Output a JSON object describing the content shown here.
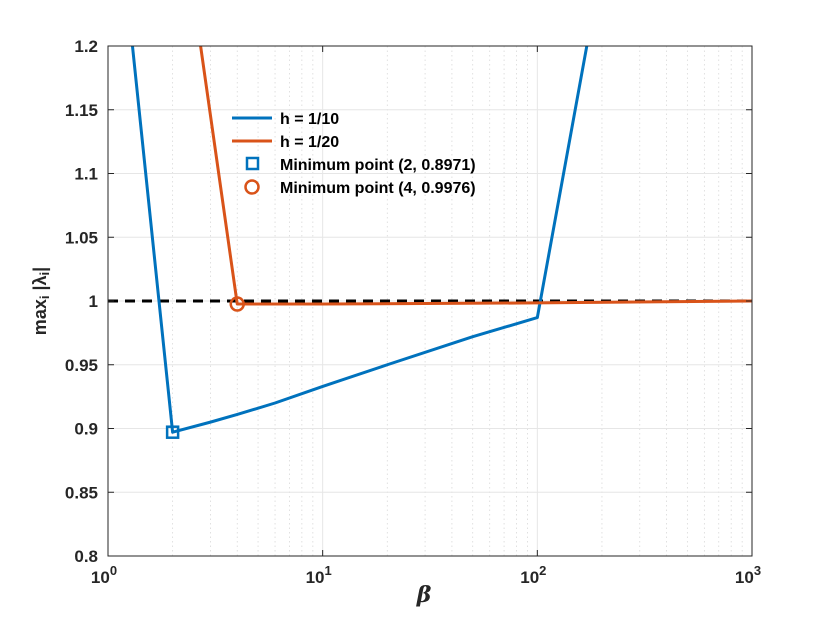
{
  "chart_data": {
    "type": "line",
    "xscale": "log",
    "xlim": [
      1,
      1000
    ],
    "ylim": [
      0.8,
      1.2
    ],
    "xticks": [
      {
        "value": 1,
        "label_base": "10",
        "label_exp": "0"
      },
      {
        "value": 10,
        "label_base": "10",
        "label_exp": "1"
      },
      {
        "value": 100,
        "label_base": "10",
        "label_exp": "2"
      },
      {
        "value": 1000,
        "label_base": "10",
        "label_exp": "3"
      }
    ],
    "yticks": [
      {
        "value": 0.8,
        "label": "0.8"
      },
      {
        "value": 0.85,
        "label": "0.85"
      },
      {
        "value": 0.9,
        "label": "0.9"
      },
      {
        "value": 0.95,
        "label": "0.95"
      },
      {
        "value": 1.0,
        "label": "1"
      },
      {
        "value": 1.05,
        "label": "1.05"
      },
      {
        "value": 1.1,
        "label": "1.1"
      },
      {
        "value": 1.15,
        "label": "1.15"
      },
      {
        "value": 1.2,
        "label": "1.2"
      }
    ],
    "xlabel": "β",
    "ylabel": {
      "base": "max",
      "sub": "i",
      "rest": " |λ",
      "sub2": "i",
      "end": "|"
    },
    "grid": true,
    "legend_position": "top-center",
    "series": [
      {
        "name": "h = 1/10",
        "color": "#0072BD",
        "x": [
          1.3,
          2,
          3,
          4,
          6,
          10,
          20,
          50,
          100,
          170
        ],
        "y": [
          1.2,
          0.8971,
          0.905,
          0.911,
          0.92,
          0.933,
          0.95,
          0.972,
          0.987,
          1.2
        ]
      },
      {
        "name": "h = 1/20",
        "color": "#D95319",
        "x": [
          2.7,
          4,
          10,
          100,
          1000
        ],
        "y": [
          1.2,
          0.9976,
          0.9976,
          0.9985,
          1.0
        ]
      },
      {
        "name": "Minimum point (2, 0.8971)",
        "color": "#0072BD",
        "marker": "square",
        "x": [
          2
        ],
        "y": [
          0.8971
        ]
      },
      {
        "name": "Minimum point (4, 0.9976)",
        "color": "#D95319",
        "marker": "circle",
        "x": [
          4
        ],
        "y": [
          0.9976
        ]
      }
    ],
    "reference_line": {
      "y": 1.0,
      "style": "dashed",
      "color": "#000000"
    }
  }
}
